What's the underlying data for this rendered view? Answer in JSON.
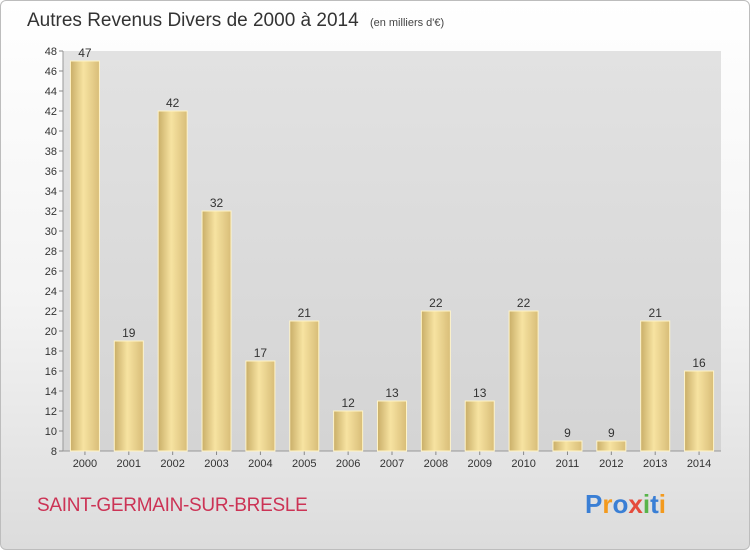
{
  "header": {
    "title": "Autres Revenus Divers de 2000 à 2014",
    "subtitle": "(en milliers d'€)"
  },
  "footer": {
    "commune": "SAINT-GERMAIN-SUR-BRESLE",
    "logo_text": "Proxiti"
  },
  "colors": {
    "bar_light": "#f7e3a1",
    "bar_dark": "#c9ae68",
    "commune": "#cc3355",
    "logo_letters": [
      "#3a7fd5",
      "#f39a1e",
      "#3a7fd5",
      "#e54b3c",
      "#58b44a",
      "#3a7fd5",
      "#f39a1e"
    ]
  },
  "chart_data": {
    "type": "bar",
    "title": "Autres Revenus Divers de 2000 à 2014",
    "subtitle": "(en milliers d'€)",
    "categories": [
      "2000",
      "2001",
      "2002",
      "2003",
      "2004",
      "2005",
      "2006",
      "2007",
      "2008",
      "2009",
      "2010",
      "2011",
      "2012",
      "2013",
      "2014"
    ],
    "values": [
      47,
      19,
      42,
      32,
      17,
      21,
      12,
      13,
      22,
      13,
      22,
      9,
      9,
      21,
      16
    ],
    "ylim": [
      8,
      48
    ],
    "yticks": [
      8,
      10,
      12,
      14,
      16,
      18,
      20,
      22,
      24,
      26,
      28,
      30,
      32,
      34,
      36,
      38,
      40,
      42,
      44,
      46,
      48
    ],
    "grid": false
  }
}
